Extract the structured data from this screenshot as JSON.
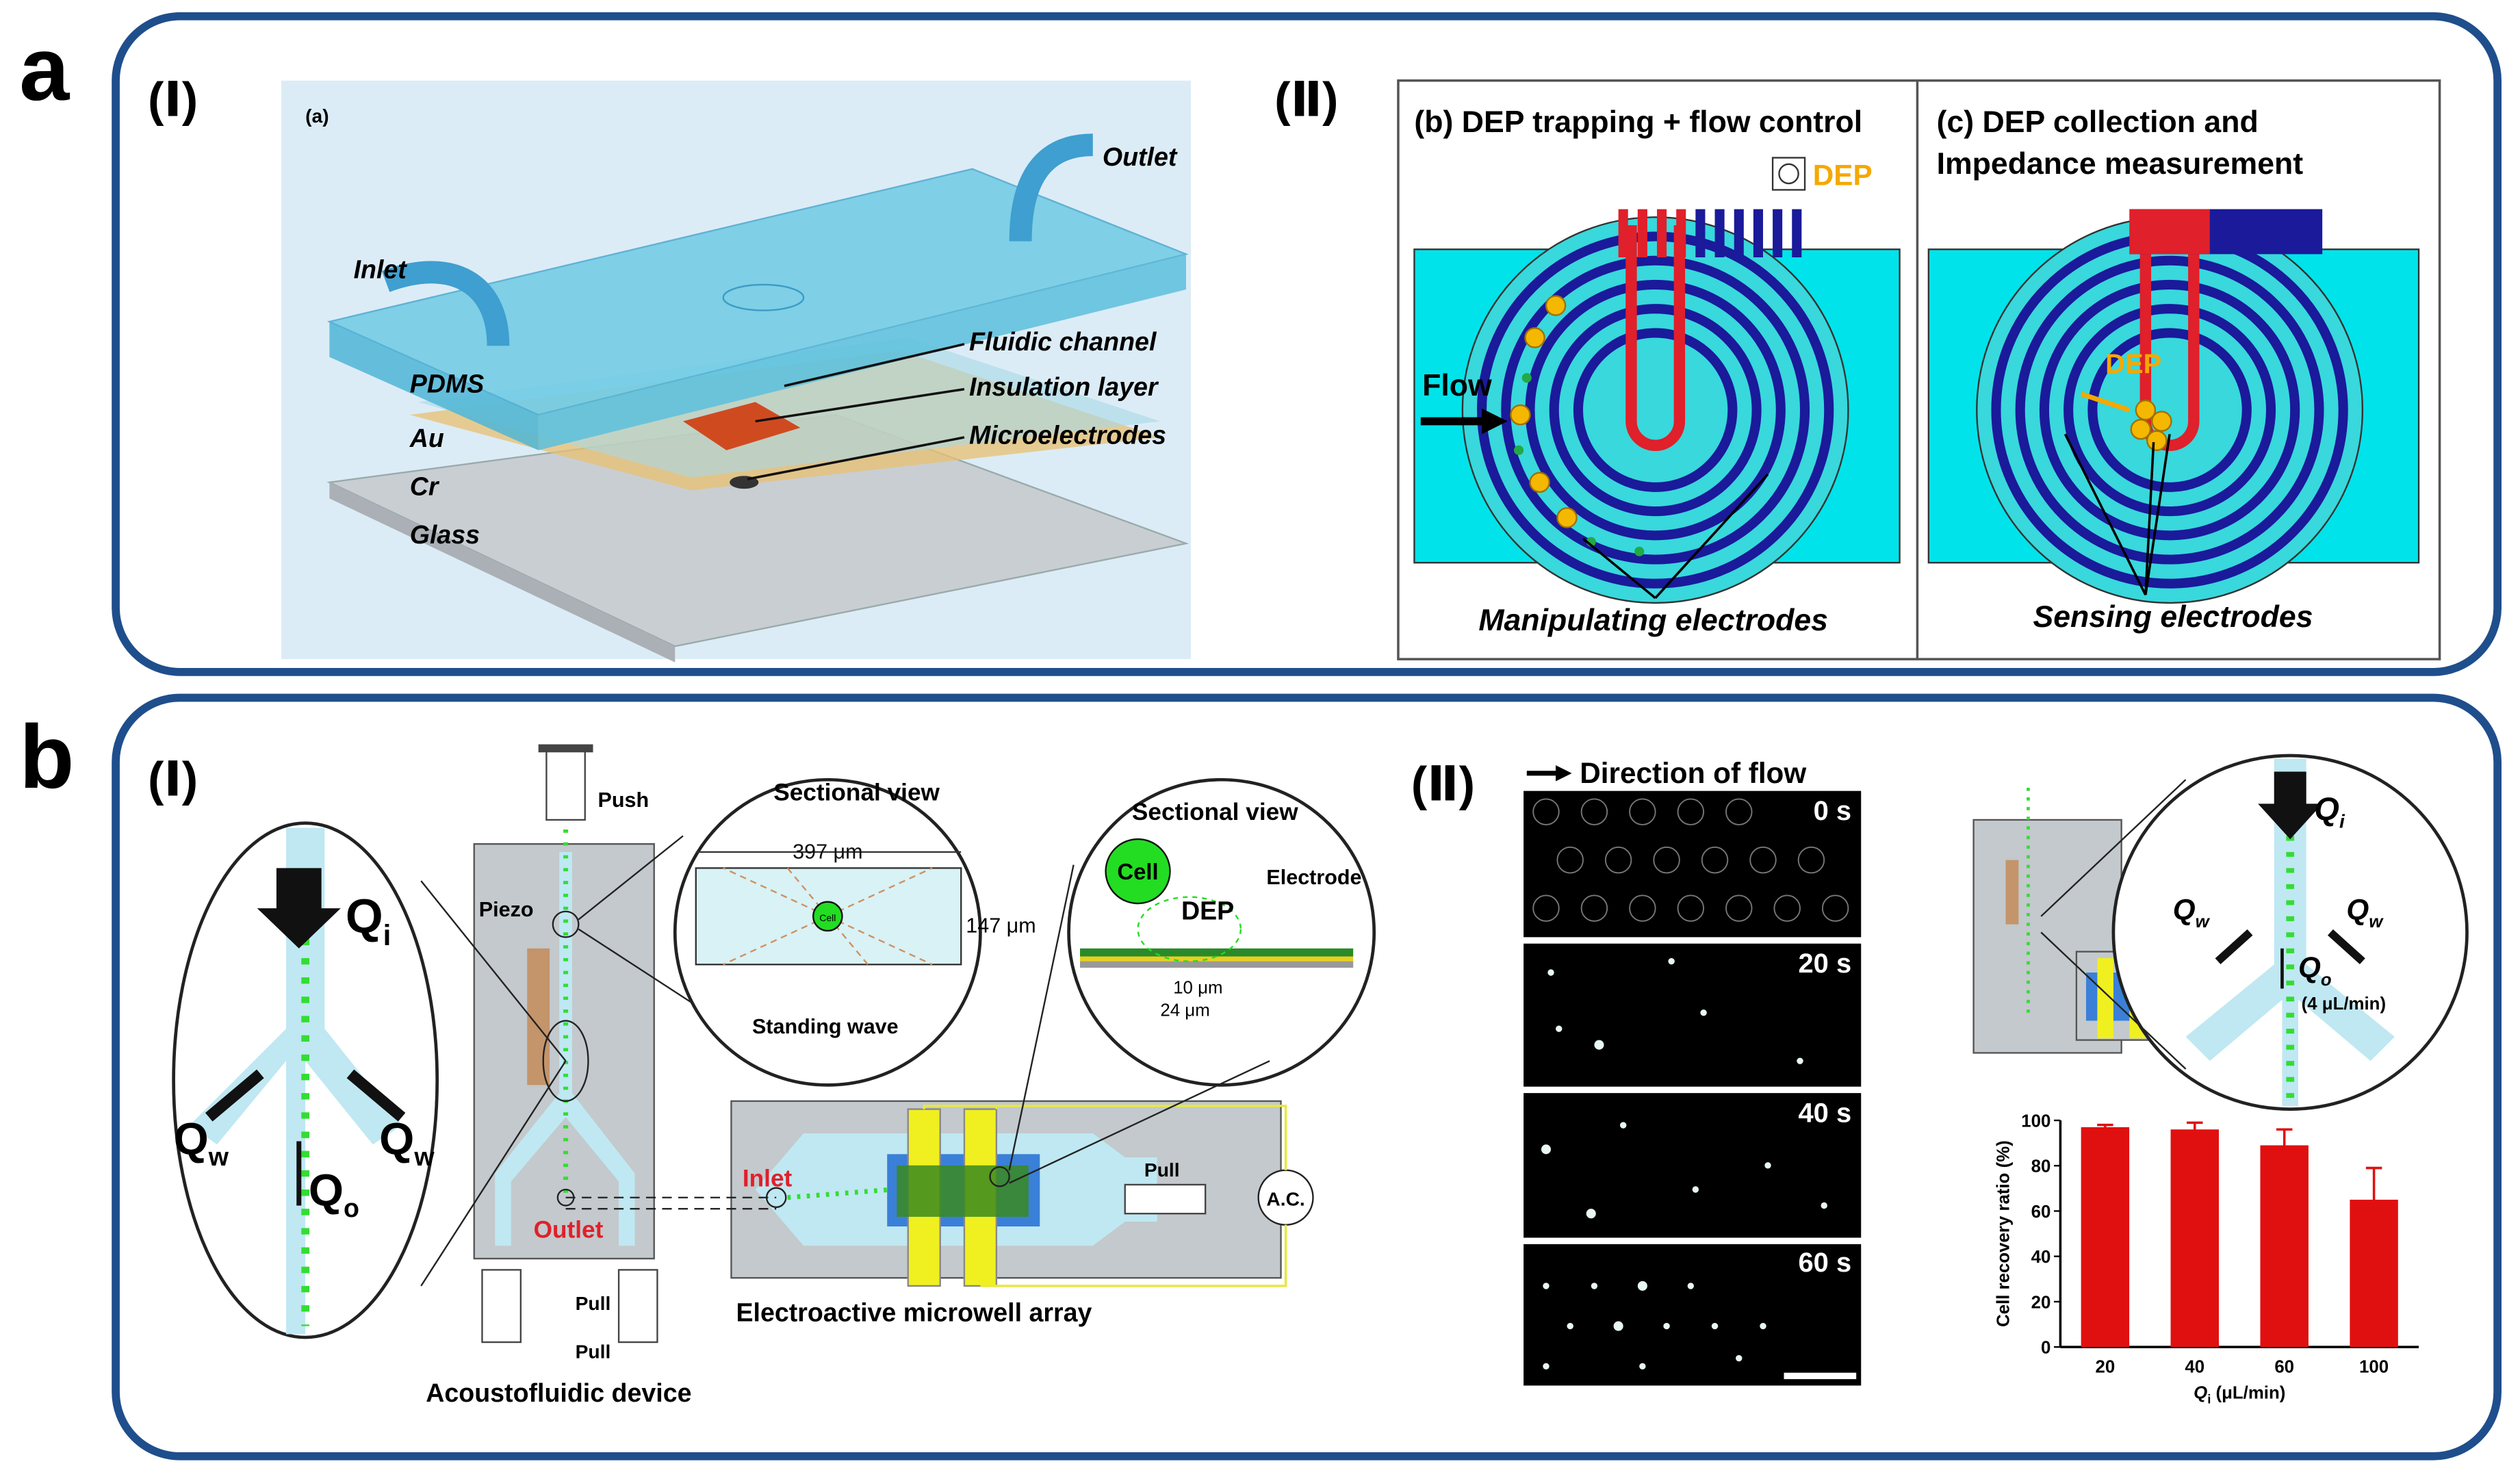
{
  "panel_a": {
    "letter": "a",
    "part1": {
      "numeral": "(Ⅰ)",
      "sublabel": "(a)",
      "outlet": "Outlet",
      "inlet": "Inlet",
      "fluidic_channel": "Fluidic channel",
      "pdms": "PDMS",
      "insulation_layer": "Insulation layer",
      "au": "Au",
      "microelectrodes": "Microelectrodes",
      "cr": "Cr",
      "glass": "Glass"
    },
    "part2": {
      "numeral": "(Ⅱ)",
      "b_title": "(b) DEP trapping + flow control",
      "c_title_line1": "(c) DEP collection and",
      "c_title_line2": "Impedance measurement",
      "dep_source": "DEP",
      "flow": "Flow",
      "dep_force": "DEP",
      "manipulating": "Manipulating electrodes",
      "sensing": "Sensing electrodes"
    }
  },
  "panel_b": {
    "letter": "b",
    "part1": {
      "numeral": "(Ⅰ)",
      "push": "Push",
      "piezo": "Piezo",
      "outlet": "Outlet",
      "pull_left": "Pull",
      "pull_right": "Pull",
      "device": "Acoustofluidic device",
      "flow_labels": [
        {
          "symbol": "Q",
          "sub": "i"
        },
        {
          "symbol": "Q",
          "sub": "w"
        },
        {
          "symbol": "Q",
          "sub": "w"
        },
        {
          "symbol": "Q",
          "sub": "o"
        }
      ],
      "section1": {
        "title": "Sectional view",
        "width": "397 μm",
        "height": "147 μm",
        "cell": "Cell",
        "wave": "Standing wave"
      },
      "section2": {
        "title": "Sectional view",
        "cell": "Cell",
        "dep": "DEP",
        "electrode": "Electrode",
        "gap": "10 μm",
        "pitch": "24 μm"
      },
      "inlet": "Inlet",
      "pull_array": "Pull",
      "ac": "A.C.",
      "array": "Electroactive microwell array"
    },
    "part2": {
      "numeral": "(Ⅱ)",
      "direction": "Direction of flow",
      "times": [
        "0 s",
        "20 s",
        "40 s",
        "60 s"
      ],
      "flow_labels": [
        {
          "symbol": "Q",
          "sub": "i"
        },
        {
          "symbol": "Q",
          "sub": "w"
        },
        {
          "symbol": "Q",
          "sub": "w"
        },
        {
          "symbol": "Q",
          "sub": "o"
        }
      ],
      "outlet_rate": "(4 μL/min)"
    }
  },
  "chart_data": {
    "type": "bar",
    "categories": [
      "20",
      "40",
      "60",
      "100"
    ],
    "values": [
      97,
      96,
      89,
      65
    ],
    "errors": [
      1,
      3,
      7,
      14
    ],
    "color": "#e01010",
    "ylim": [
      0,
      100
    ],
    "yticks": [
      0,
      20,
      40,
      60,
      80,
      100
    ],
    "y_label": "Cell recovery ratio (%)",
    "x_label": {
      "symbol": "Q",
      "sub": "i",
      "unit": "(μL/min)"
    }
  }
}
